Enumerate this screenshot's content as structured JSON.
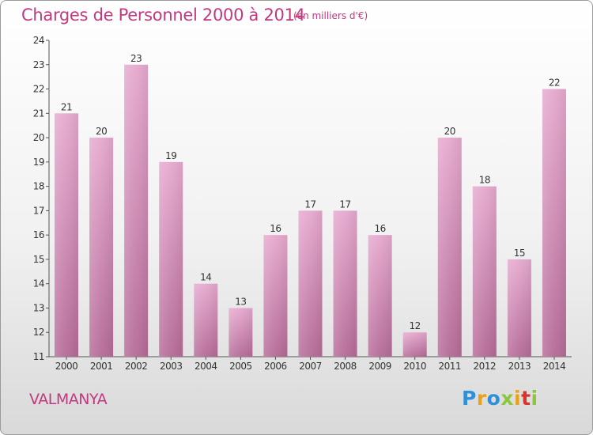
{
  "title": "Charges de Personnel 2000 à 2014",
  "subtitle": "(en milliers d'€)",
  "commune": "VALMANYA",
  "brand": {
    "letters": [
      {
        "ch": "P",
        "color": "#2f8fd8"
      },
      {
        "ch": "r",
        "color": "#e8a21c"
      },
      {
        "ch": "o",
        "color": "#2f8fd8"
      },
      {
        "ch": "x",
        "color": "#8cc63f"
      },
      {
        "ch": "i",
        "color": "#e8a21c"
      },
      {
        "ch": "t",
        "color": "#d9342b"
      },
      {
        "ch": "i",
        "color": "#8cc63f"
      }
    ]
  },
  "colors": {
    "bar_top": "#e6a9cf",
    "bar_bottom": "#b56b97",
    "accent": "#c1397e"
  },
  "chart_data": {
    "type": "bar",
    "categories": [
      "2000",
      "2001",
      "2002",
      "2003",
      "2004",
      "2005",
      "2006",
      "2007",
      "2008",
      "2009",
      "2010",
      "2011",
      "2012",
      "2013",
      "2014"
    ],
    "values": [
      21,
      20,
      23,
      19,
      14,
      13,
      16,
      17,
      17,
      16,
      12,
      20,
      18,
      15,
      22
    ],
    "ylim": [
      11,
      24
    ],
    "yticks": [
      11,
      12,
      13,
      14,
      15,
      16,
      17,
      18,
      19,
      20,
      21,
      22,
      23,
      24
    ],
    "grid": false,
    "legend": "none"
  }
}
